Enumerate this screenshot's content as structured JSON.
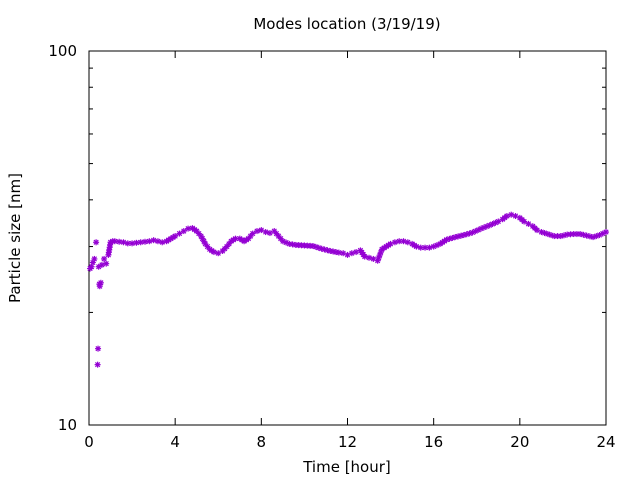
{
  "chart_data": {
    "type": "scatter",
    "title": "Modes location (3/19/19)",
    "xlabel": "Time [hour]",
    "ylabel": "Particle size [nm]",
    "xlim": [
      0,
      24
    ],
    "ylim": [
      10,
      100
    ],
    "yscale": "log",
    "grid": false,
    "legend": "none",
    "marker": "asterisk",
    "xticks": [
      0,
      4,
      8,
      12,
      16,
      20,
      24
    ],
    "xtick_labels": [
      "0",
      "4",
      "8",
      "12",
      "16",
      "20",
      "24"
    ],
    "yticks": [
      10,
      100
    ],
    "ytick_labels": [
      "10",
      "100"
    ],
    "series": [
      {
        "color": "#9400d3",
        "x": [
          0.05,
          0.12,
          0.18,
          0.25,
          0.33,
          0.4,
          0.42,
          0.45,
          0.48,
          0.5,
          0.55,
          0.6,
          0.7,
          0.8,
          0.9,
          1.0,
          1.1,
          1.2,
          1.4,
          1.6,
          1.8,
          2.0,
          2.2,
          2.4,
          2.6,
          2.8,
          3.0,
          3.2,
          3.4,
          3.6,
          3.8,
          4.0,
          4.2,
          4.4,
          4.6,
          4.8,
          5.0,
          5.2,
          5.4,
          5.6,
          5.8,
          6.0,
          6.2,
          6.4,
          6.6,
          6.8,
          7.0,
          7.2,
          7.4,
          7.6,
          7.8,
          8.0,
          8.2,
          8.4,
          8.6,
          8.8,
          9.0,
          9.3,
          9.6,
          10.0,
          10.4,
          10.8,
          11.2,
          11.6,
          11.8,
          12.0,
          12.2,
          12.4,
          12.6,
          12.8,
          13.0,
          13.2,
          13.4,
          13.6,
          13.8,
          14.0,
          14.2,
          14.4,
          14.6,
          14.8,
          15.0,
          15.2,
          15.4,
          15.6,
          15.8,
          16.0,
          16.3,
          16.6,
          17.0,
          17.4,
          17.8,
          18.2,
          18.6,
          19.0,
          19.2,
          19.4,
          19.6,
          19.8,
          20.0,
          20.2,
          20.4,
          20.6,
          20.8,
          21.0,
          21.3,
          21.6,
          21.9,
          22.2,
          22.5,
          22.8,
          23.1,
          23.4,
          23.7,
          24.0
        ],
        "y": [
          26.2,
          26.5,
          27.2,
          27.8,
          30.8,
          14.5,
          16.0,
          26.5,
          23.8,
          23.5,
          24.0,
          26.8,
          27.8,
          27.0,
          28.5,
          30.8,
          31.0,
          31.0,
          30.9,
          30.8,
          30.6,
          30.6,
          30.7,
          30.8,
          30.9,
          31.0,
          31.2,
          31.0,
          30.8,
          31.0,
          31.5,
          32.0,
          32.5,
          33.0,
          33.5,
          33.6,
          33.0,
          32.0,
          30.5,
          29.5,
          29.0,
          28.8,
          29.2,
          30.0,
          31.0,
          31.5,
          31.5,
          31.0,
          31.5,
          32.5,
          33.0,
          33.2,
          32.8,
          32.6,
          33.0,
          32.0,
          31.0,
          30.5,
          30.3,
          30.2,
          30.1,
          29.6,
          29.2,
          28.9,
          28.8,
          28.5,
          28.8,
          29.0,
          29.3,
          28.2,
          28.0,
          27.8,
          27.5,
          29.5,
          30.0,
          30.5,
          30.8,
          31.0,
          31.0,
          30.8,
          30.5,
          30.0,
          29.8,
          29.8,
          29.8,
          30.0,
          30.5,
          31.3,
          31.8,
          32.2,
          32.7,
          33.5,
          34.2,
          35.0,
          35.5,
          36.2,
          36.5,
          36.2,
          35.8,
          35.0,
          34.5,
          34.0,
          33.2,
          32.8,
          32.4,
          32.0,
          32.0,
          32.3,
          32.4,
          32.4,
          32.1,
          31.8,
          32.2,
          32.8
        ]
      }
    ]
  }
}
